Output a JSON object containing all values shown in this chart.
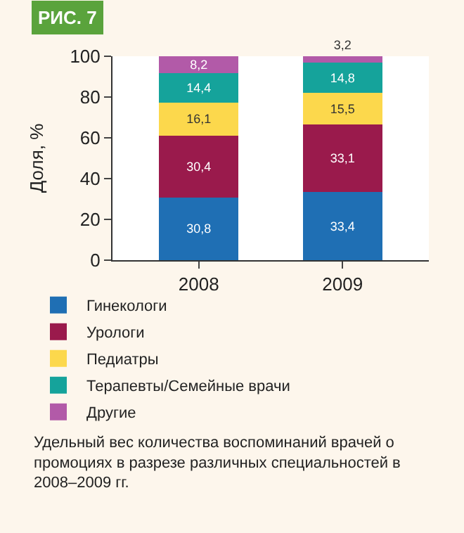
{
  "chart_data": {
    "type": "bar",
    "stacked": true,
    "title": "РИС. 7",
    "ylabel": "Доля, %",
    "categories": [
      "2008",
      "2009"
    ],
    "series": [
      {
        "name": "Гинекологи",
        "color": "#1f6fb4",
        "values": [
          30.8,
          33.4
        ],
        "value_labels": [
          "30,8",
          "33,4"
        ]
      },
      {
        "name": "Урологи",
        "color": "#9a1a4c",
        "values": [
          30.4,
          33.1
        ],
        "value_labels": [
          "30,4",
          "33,1"
        ]
      },
      {
        "name": "Педиатры",
        "color": "#fcd84c",
        "values": [
          16.1,
          15.5
        ],
        "value_labels": [
          "16,1",
          "15,5"
        ]
      },
      {
        "name": "Терапевты/Семейные врачи",
        "color": "#15a39b",
        "values": [
          14.4,
          14.8
        ],
        "value_labels": [
          "14,4",
          "14,8"
        ]
      },
      {
        "name": "Другие",
        "color": "#b25aa8",
        "values": [
          8.2,
          3.2
        ],
        "value_labels": [
          "8,2",
          "3,2"
        ]
      }
    ],
    "ylim": [
      0,
      100
    ],
    "yticks": [
      0,
      20,
      40,
      60,
      80,
      100
    ],
    "legend": "bottom",
    "annotations": [
      "Удельный вес количества воспоминаний врачей о промоциях в разрезе различных специальностей в 2008–2009 гг."
    ]
  }
}
